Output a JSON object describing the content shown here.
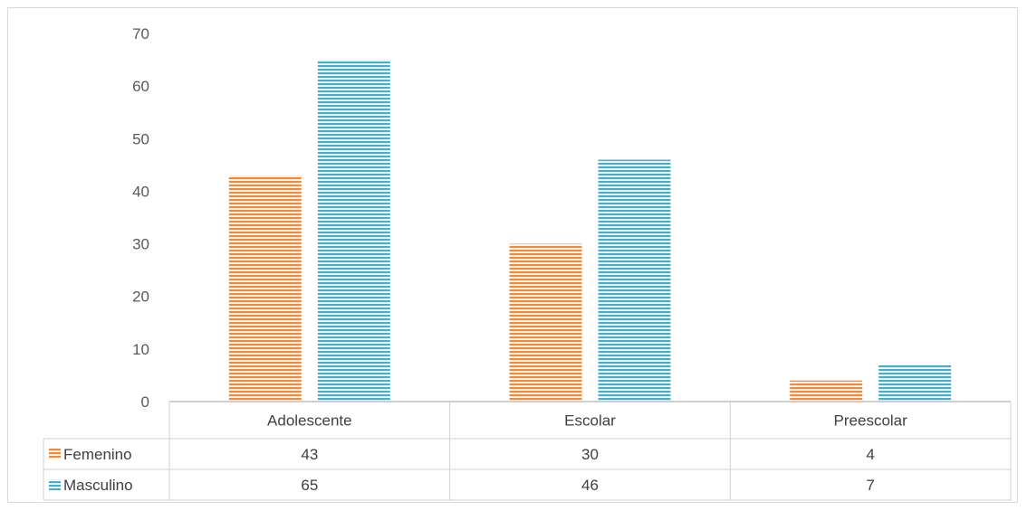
{
  "chart_data": {
    "type": "bar",
    "title": "",
    "xlabel": "",
    "ylabel": "",
    "categories": [
      "Adolescente",
      "Escolar",
      "Preescolar"
    ],
    "series": [
      {
        "name": "Femenino",
        "values": [
          43,
          30,
          4
        ],
        "color": "#f4a460",
        "stripe_color": "#ed7d31"
      },
      {
        "name": "Masculino",
        "values": [
          65,
          46,
          7
        ],
        "color": "#6ec3d6",
        "stripe_color": "#4aacc6"
      }
    ],
    "ylim": [
      0,
      70
    ],
    "yticks": [
      0,
      10,
      20,
      30,
      40,
      50,
      60,
      70
    ],
    "grid": false,
    "legend": "data-table",
    "data_table": true
  }
}
